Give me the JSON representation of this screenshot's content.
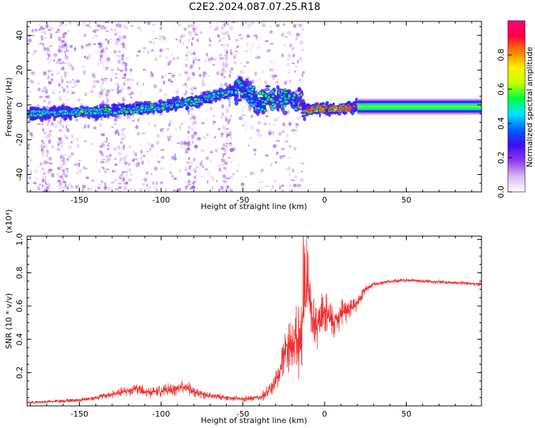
{
  "title": "C2E2.2024.087.07.25.R18",
  "colors": {
    "snr_line": "#f03030",
    "axis": "#000000",
    "colormap": [
      "#ffffff",
      "#d9b8f0",
      "#8e3cf0",
      "#3c0cf0",
      "#0060ff",
      "#00e5ff",
      "#00ff40",
      "#c8ff00",
      "#ffee00",
      "#ff8000",
      "#ff0040",
      "#ff0080"
    ]
  },
  "chart_data": [
    {
      "type": "heatmap",
      "title": "C2E2.2024.087.07.25.R18",
      "xlabel": "Height of straight line (km)",
      "ylabel": "Frequency (Hz)",
      "xlim": [
        -182,
        96
      ],
      "ylim": [
        -50,
        48
      ],
      "x_ticks": [
        -150,
        -100,
        -50,
        0,
        50
      ],
      "y_ticks": [
        -40,
        -20,
        0,
        20,
        40
      ],
      "x_tick_labels": [
        "-150",
        "-100",
        "-50",
        "0",
        "50"
      ],
      "y_tick_labels": [
        "-40",
        "-20",
        "0",
        "20",
        "40"
      ],
      "colorbar": {
        "label": "Normalized spectral amplitude",
        "range": [
          0,
          1
        ],
        "ticks": [
          0.0,
          0.2,
          0.4,
          0.6,
          0.8
        ],
        "tick_labels": [
          "0.0",
          "0.2",
          "0.4",
          "0.6",
          "0.8"
        ]
      },
      "ridge": [
        {
          "x": -180,
          "f": -5
        },
        {
          "x": -160,
          "f": -4.5
        },
        {
          "x": -140,
          "f": -4
        },
        {
          "x": -120,
          "f": -3
        },
        {
          "x": -100,
          "f": -1
        },
        {
          "x": -80,
          "f": 2
        },
        {
          "x": -60,
          "f": 7
        },
        {
          "x": -50,
          "f": 10
        },
        {
          "x": -40,
          "f": 2
        },
        {
          "x": -30,
          "f": 4
        },
        {
          "x": -15,
          "f": 2
        },
        {
          "x": -12,
          "f": -3
        },
        {
          "x": 0,
          "f": -2
        },
        {
          "x": 10,
          "f": -2
        },
        {
          "x": 20,
          "f": -1
        },
        {
          "x": 96,
          "f": -1
        }
      ],
      "steady_band": {
        "x_from": 20,
        "x_to": 96,
        "f": -1
      }
    },
    {
      "type": "line",
      "xlabel": "Height of straight line (km)",
      "ylabel": "SNR (10 * v/v)",
      "y_multiplier": "(x10⁴)",
      "xlim": [
        -182,
        96
      ],
      "ylim": [
        0,
        1.02
      ],
      "x_ticks": [
        -150,
        -100,
        -50,
        0,
        50
      ],
      "y_ticks": [
        0.2,
        0.4,
        0.6,
        0.8,
        1.0
      ],
      "x_tick_labels": [
        "-150",
        "-100",
        "-50",
        "0",
        "50"
      ],
      "y_tick_labels": [
        "0.2",
        "0.4",
        "0.6",
        "0.8",
        "1.0"
      ],
      "series": [
        {
          "x": [
            -182,
            -170,
            -160,
            -150,
            -140,
            -130,
            -120,
            -115,
            -110,
            -100,
            -90,
            -85,
            -80,
            -70,
            -60,
            -50,
            -40,
            -35,
            -30,
            -27,
            -25,
            -22,
            -20,
            -18,
            -16,
            -14,
            -12,
            -10,
            -8,
            -5,
            0,
            5,
            10,
            15,
            20,
            25,
            30,
            40,
            50,
            60,
            70,
            80,
            90,
            96
          ],
          "y": [
            0.02,
            0.025,
            0.03,
            0.035,
            0.05,
            0.07,
            0.09,
            0.11,
            0.08,
            0.09,
            0.1,
            0.12,
            0.08,
            0.06,
            0.05,
            0.04,
            0.05,
            0.08,
            0.14,
            0.22,
            0.32,
            0.38,
            0.34,
            0.42,
            0.38,
            0.45,
            0.58,
            0.74,
            0.52,
            0.46,
            0.56,
            0.5,
            0.56,
            0.58,
            0.62,
            0.7,
            0.73,
            0.75,
            0.755,
            0.75,
            0.745,
            0.74,
            0.735,
            0.73
          ],
          "y_spread": [
            0.01,
            0.01,
            0.015,
            0.015,
            0.02,
            0.03,
            0.04,
            0.05,
            0.04,
            0.04,
            0.05,
            0.05,
            0.04,
            0.025,
            0.02,
            0.02,
            0.03,
            0.05,
            0.08,
            0.12,
            0.16,
            0.2,
            0.2,
            0.22,
            0.24,
            0.26,
            0.28,
            0.25,
            0.22,
            0.18,
            0.16,
            0.15,
            0.12,
            0.1,
            0.06,
            0.03,
            0.02,
            0.015,
            0.015,
            0.015,
            0.015,
            0.015,
            0.015,
            0.015
          ]
        }
      ]
    }
  ]
}
